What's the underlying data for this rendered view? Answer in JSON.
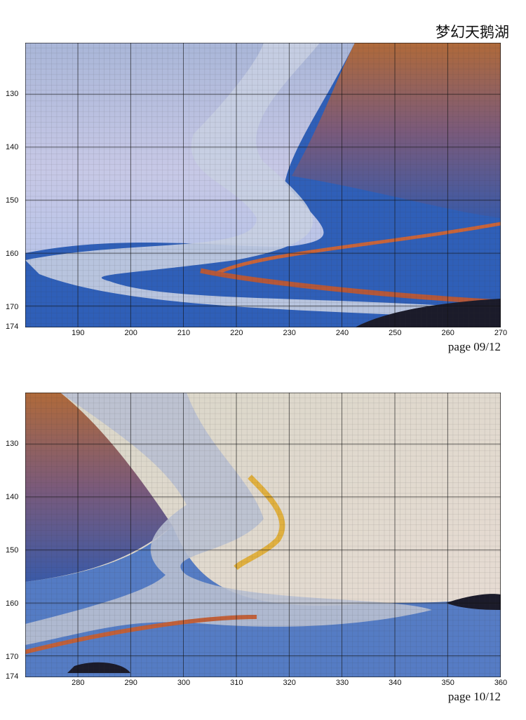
{
  "header": {
    "title": "梦幻天鹅湖"
  },
  "pages": [
    {
      "x_labels": [
        190,
        200,
        210,
        220,
        230,
        240,
        250,
        260,
        270
      ],
      "y_labels": [
        130,
        140,
        150,
        160,
        170,
        174
      ],
      "footer": "page 09/12"
    },
    {
      "x_labels": [
        280,
        290,
        300,
        310,
        320,
        330,
        340,
        350,
        360
      ],
      "y_labels": [
        130,
        140,
        150,
        160,
        170,
        174
      ],
      "footer": "page 10/12"
    }
  ]
}
